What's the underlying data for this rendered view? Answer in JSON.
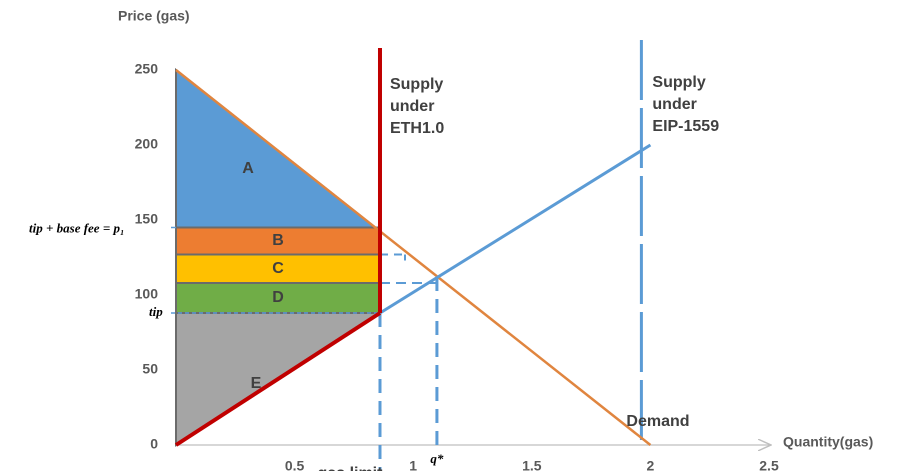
{
  "chart_data": {
    "type": "supply-demand",
    "y_label": "Price (gas)",
    "x_label": "Quantity(gas)",
    "xlim": [
      0,
      2.5
    ],
    "ylim": [
      0,
      250
    ],
    "xticks": [
      0.5,
      1,
      1.5,
      2,
      2.5
    ],
    "yticks": [
      0,
      50,
      100,
      150,
      200,
      250
    ],
    "demand": {
      "name": "Demand",
      "color": "#e0853f",
      "x": [
        0,
        2
      ],
      "values": [
        250,
        0
      ]
    },
    "eth1_supply": {
      "name_lines": [
        "Supply",
        "under",
        "ETH1.0"
      ],
      "color": "#c00000",
      "gas_limit": 0.86
    },
    "eip1559_supply": {
      "name_lines": [
        "Supply",
        "under",
        "EIP-1559"
      ],
      "color": "#5b9bd5",
      "x": [
        0.86,
        2
      ],
      "values": [
        88,
        200
      ],
      "max_capacity": 2
    },
    "tip_line": {
      "color": "#c00000",
      "x": [
        0,
        0.86
      ],
      "values": [
        0,
        88
      ]
    },
    "levels": {
      "p1": 145,
      "bc": 127,
      "cd": 108,
      "tip": 88
    },
    "level_labels": {
      "p1": "tip + base fee = p₁",
      "tip": "tip"
    },
    "regions": [
      {
        "label": "A",
        "color": "#5b9bd5"
      },
      {
        "label": "B",
        "color": "#ed7d31"
      },
      {
        "label": "C",
        "color": "#ffc000"
      },
      {
        "label": "D",
        "color": "#70ad47"
      },
      {
        "label": "E",
        "color": "#a5a5a5"
      }
    ],
    "q_star": {
      "label": "q*",
      "x": 1.1,
      "y": 112
    },
    "gas_limit_label": "gas limit"
  }
}
